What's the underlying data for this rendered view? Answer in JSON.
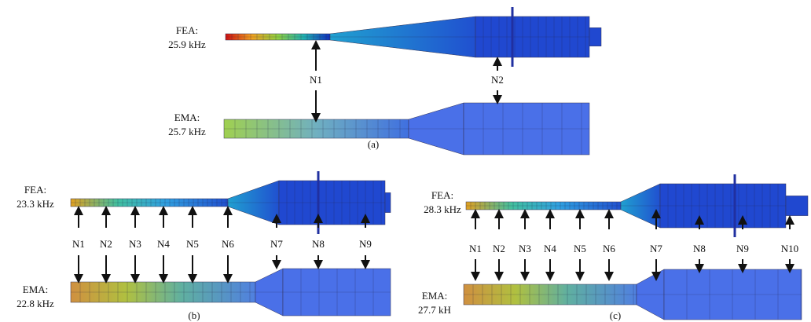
{
  "panels": [
    {
      "label": "(a)",
      "fea_label": "FEA:",
      "fea_freq": "25.9 kHz",
      "ema_label": "EMA:",
      "ema_freq": "25.7 kHz",
      "nodes": [
        "N1",
        "N2"
      ]
    },
    {
      "label": "(b)",
      "fea_label": "FEA:",
      "fea_freq": "23.3 kHz",
      "ema_label": "EMA:",
      "ema_freq": "22.8 kHz",
      "nodes": [
        "N1",
        "N2",
        "N3",
        "N4",
        "N5",
        "N6",
        "N7",
        "N8",
        "N9"
      ]
    },
    {
      "label": "(c)",
      "fea_label": "FEA:",
      "fea_freq": "28.3 kHz",
      "ema_label": "EMA:",
      "ema_freq": "27.7 kH",
      "nodes": [
        "N1",
        "N2",
        "N3",
        "N4",
        "N5",
        "N6",
        "N7",
        "N8",
        "N9",
        "N10"
      ]
    }
  ]
}
